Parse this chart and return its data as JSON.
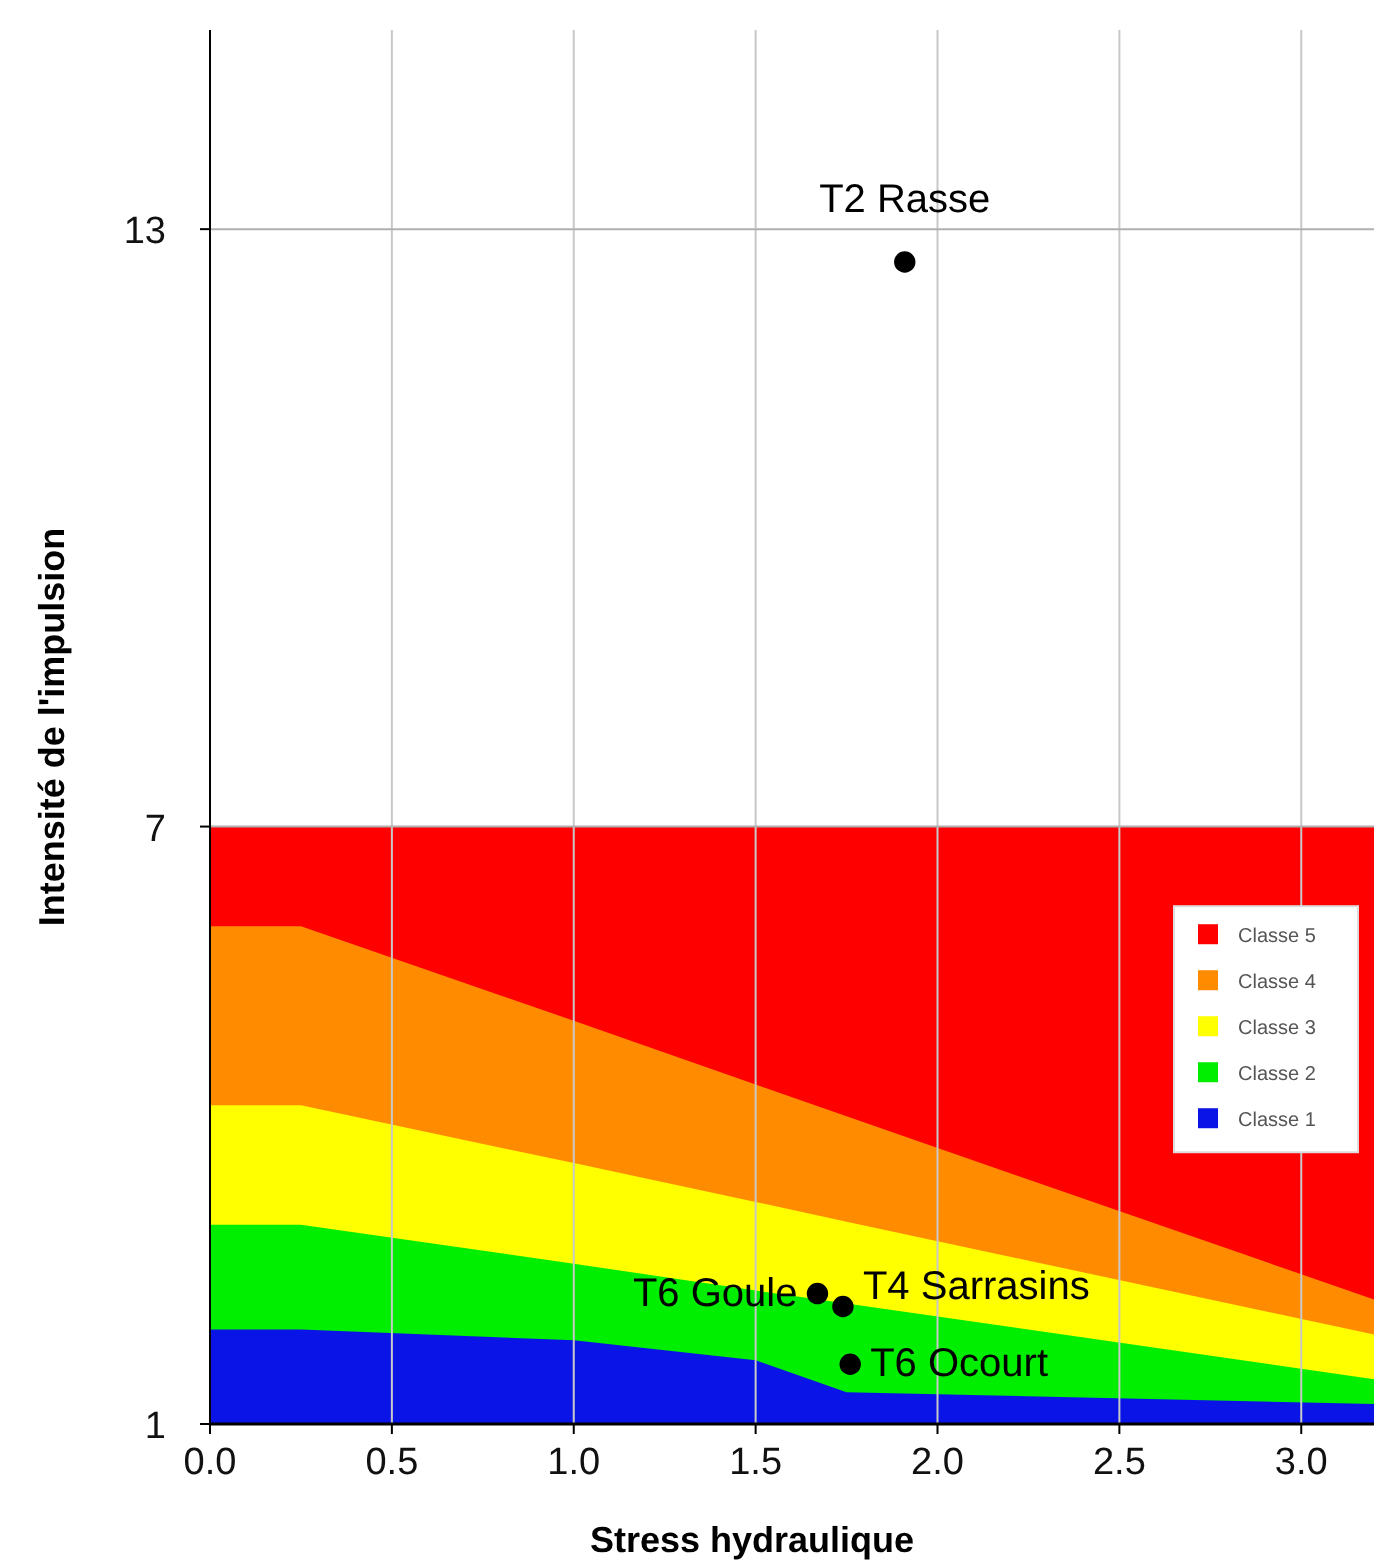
{
  "chart_data": {
    "type": "area",
    "xlabel": "Stress hydraulique",
    "ylabel": "Intensité de l'impulsion",
    "x": [
      0,
      0.25,
      1.0,
      1.5,
      1.75,
      3.2
    ],
    "series": [
      {
        "name": "Classe 5",
        "color": "#ff0000",
        "values": [
          7,
          7,
          7,
          7,
          7,
          7
        ]
      },
      {
        "name": "Classe 4",
        "color": "#ff8c00",
        "values": [
          6,
          6,
          5.05,
          4.41,
          4.09,
          2.25
        ]
      },
      {
        "name": "Classe 3",
        "color": "#ffff00",
        "values": [
          4.2,
          4.2,
          3.62,
          3.23,
          3.03,
          1.9
        ]
      },
      {
        "name": "Classe 2",
        "color": "#00ee00",
        "values": [
          3,
          3,
          2.61,
          2.34,
          2.21,
          1.45
        ]
      },
      {
        "name": "Classe 1",
        "color": "#0a14e6",
        "values": [
          1.95,
          1.95,
          1.84,
          1.64,
          1.32,
          1.2
        ]
      },
      {
        "type": "scatter",
        "marker": "circle",
        "color": "#000000",
        "x": [
          1.91,
          1.67,
          1.74,
          1.76
        ],
        "values": [
          12.67,
          2.31,
          2.18,
          1.6
        ]
      }
    ],
    "annotations": [
      {
        "text": "T2 Rasse",
        "x": 1.91,
        "y": 12.67
      },
      {
        "text": "T6 Goule",
        "x": 1.67,
        "y": 2.31
      },
      {
        "text": "T4 Sarrasins",
        "x": 1.74,
        "y": 2.18
      },
      {
        "text": "T6 Ocourt",
        "x": 1.76,
        "y": 1.6
      }
    ],
    "xlim": [
      0,
      3.2
    ],
    "ylim": [
      1,
      15
    ],
    "xticks": [
      {
        "value": 0,
        "label": "0.0"
      },
      {
        "value": 0.5,
        "label": "0.5"
      },
      {
        "value": 1,
        "label": "1.0"
      },
      {
        "value": 1.5,
        "label": "1.5"
      },
      {
        "value": 2,
        "label": "2.0"
      },
      {
        "value": 2.5,
        "label": "2.5"
      },
      {
        "value": 3,
        "label": "3.0"
      }
    ],
    "yticks": [
      1,
      7,
      13
    ],
    "grid": true,
    "legend": "right"
  }
}
